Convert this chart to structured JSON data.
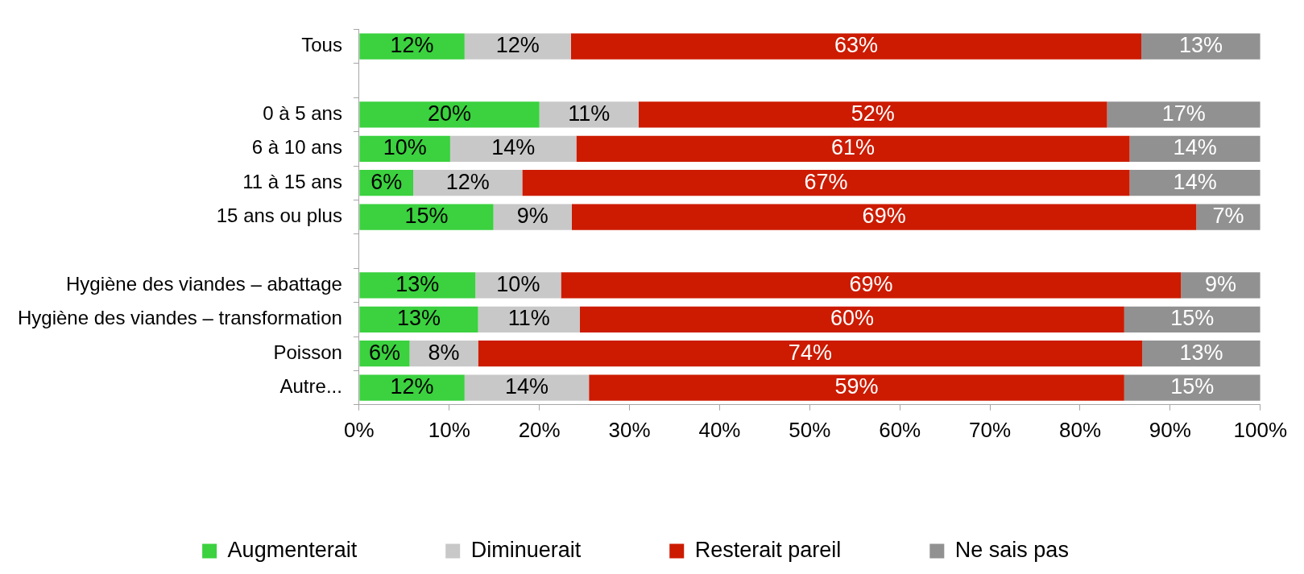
{
  "chart_data": {
    "type": "bar",
    "orientation": "horizontal",
    "stacked": true,
    "grid": false,
    "legend": "bottom",
    "categories": [
      "Tous",
      null,
      "0 à 5 ans",
      "6 à 10 ans",
      "11 à 15 ans",
      "15 ans ou plus",
      null,
      "Hygiène des viandes – abattage",
      "Hygiène des viandes – transformation",
      "Poisson",
      "Autre..."
    ],
    "xlim": [
      0,
      100
    ],
    "xticks": [
      {
        "value": 0,
        "label": "0%"
      },
      {
        "value": 10,
        "label": "10%"
      },
      {
        "value": 20,
        "label": "20%"
      },
      {
        "value": 30,
        "label": "30%"
      },
      {
        "value": 40,
        "label": "40%"
      },
      {
        "value": 50,
        "label": "50%"
      },
      {
        "value": 60,
        "label": "60%"
      },
      {
        "value": 70,
        "label": "70%"
      },
      {
        "value": 80,
        "label": "80%"
      },
      {
        "value": 90,
        "label": "90%"
      },
      {
        "value": 100,
        "label": "100%"
      }
    ],
    "series": [
      {
        "name": "Augmenterait",
        "color": "#3bd13f",
        "values": [
          11.7,
          null,
          20.0,
          10.1,
          6.0,
          14.9,
          null,
          12.9,
          13.2,
          5.6,
          11.7
        ],
        "value_labels": [
          "12%",
          null,
          "20%",
          "10%",
          "6%",
          "15%",
          null,
          "13%",
          "13%",
          "6%",
          "12%"
        ]
      },
      {
        "name": "Diminuerait",
        "color": "#c8c8c8",
        "values": [
          11.8,
          null,
          11.0,
          14.0,
          12.1,
          8.7,
          null,
          9.5,
          11.3,
          7.6,
          13.8
        ],
        "value_labels": [
          "12%",
          null,
          "11%",
          "14%",
          "12%",
          "9%",
          null,
          "10%",
          "11%",
          "8%",
          "14%"
        ]
      },
      {
        "name": "Resterait pareil",
        "color": "#cc1b00",
        "values": [
          63.3,
          null,
          52.0,
          61.4,
          67.4,
          69.3,
          null,
          68.8,
          60.4,
          73.7,
          59.4
        ],
        "value_labels": [
          "63%",
          null,
          "52%",
          "61%",
          "67%",
          "69%",
          null,
          "69%",
          "60%",
          "74%",
          "59%"
        ]
      },
      {
        "name": "Ne sais pas",
        "color": "#919191",
        "values": [
          13.2,
          null,
          17.0,
          14.5,
          14.5,
          7.1,
          null,
          8.8,
          15.1,
          13.1,
          15.1
        ],
        "value_labels": [
          "13%",
          null,
          "17%",
          "14%",
          "14%",
          "7%",
          null,
          "9%",
          "15%",
          "13%",
          "15%"
        ]
      }
    ]
  }
}
